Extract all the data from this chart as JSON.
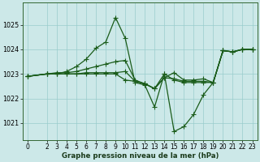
{
  "title": "Graphe pression niveau de la mer (hPa)",
  "bg_color": "#cce8e8",
  "line_color": "#1a5c1a",
  "grid_color": "#99cccc",
  "xlim": [
    -0.5,
    23.5
  ],
  "ylim": [
    1020.3,
    1025.9
  ],
  "yticks": [
    1021,
    1022,
    1023,
    1024,
    1025
  ],
  "xticks": [
    0,
    2,
    3,
    4,
    5,
    6,
    7,
    8,
    9,
    10,
    11,
    12,
    13,
    14,
    15,
    16,
    17,
    18,
    19,
    20,
    21,
    22,
    23
  ],
  "series1": [
    [
      0,
      1022.9
    ],
    [
      2,
      1023.0
    ],
    [
      3,
      1023.0
    ],
    [
      4,
      1023.1
    ],
    [
      5,
      1023.3
    ],
    [
      6,
      1023.6
    ],
    [
      7,
      1024.05
    ],
    [
      8,
      1024.3
    ],
    [
      9,
      1025.3
    ],
    [
      10,
      1024.45
    ],
    [
      11,
      1022.65
    ],
    [
      12,
      1022.55
    ],
    [
      13,
      1021.65
    ],
    [
      14,
      1023.0
    ],
    [
      15,
      1020.65
    ],
    [
      16,
      1020.85
    ],
    [
      17,
      1021.35
    ],
    [
      18,
      1022.15
    ],
    [
      19,
      1022.65
    ],
    [
      20,
      1023.95
    ],
    [
      21,
      1023.9
    ],
    [
      22,
      1024.0
    ],
    [
      23,
      1024.0
    ]
  ],
  "series2": [
    [
      0,
      1022.9
    ],
    [
      2,
      1023.0
    ],
    [
      3,
      1023.05
    ],
    [
      4,
      1023.05
    ],
    [
      5,
      1023.1
    ],
    [
      6,
      1023.2
    ],
    [
      7,
      1023.3
    ],
    [
      8,
      1023.4
    ],
    [
      9,
      1023.5
    ],
    [
      10,
      1023.55
    ],
    [
      11,
      1022.75
    ],
    [
      12,
      1022.6
    ],
    [
      13,
      1022.4
    ],
    [
      14,
      1022.85
    ],
    [
      15,
      1023.05
    ],
    [
      16,
      1022.75
    ],
    [
      17,
      1022.75
    ],
    [
      18,
      1022.8
    ],
    [
      19,
      1022.65
    ],
    [
      20,
      1023.95
    ],
    [
      21,
      1023.9
    ],
    [
      22,
      1024.0
    ],
    [
      23,
      1024.0
    ]
  ],
  "series3": [
    [
      0,
      1022.9
    ],
    [
      2,
      1023.0
    ],
    [
      3,
      1023.0
    ],
    [
      4,
      1023.0
    ],
    [
      5,
      1023.0
    ],
    [
      6,
      1023.05
    ],
    [
      7,
      1023.05
    ],
    [
      8,
      1023.05
    ],
    [
      9,
      1023.05
    ],
    [
      10,
      1023.1
    ],
    [
      11,
      1022.7
    ],
    [
      12,
      1022.6
    ],
    [
      13,
      1022.4
    ],
    [
      14,
      1022.85
    ],
    [
      15,
      1022.8
    ],
    [
      16,
      1022.7
    ],
    [
      17,
      1022.7
    ],
    [
      18,
      1022.7
    ],
    [
      19,
      1022.65
    ],
    [
      20,
      1023.95
    ],
    [
      21,
      1023.9
    ],
    [
      22,
      1024.0
    ],
    [
      23,
      1024.0
    ]
  ],
  "series4": [
    [
      0,
      1022.9
    ],
    [
      2,
      1023.0
    ],
    [
      3,
      1023.0
    ],
    [
      4,
      1023.0
    ],
    [
      5,
      1023.0
    ],
    [
      6,
      1023.0
    ],
    [
      7,
      1023.0
    ],
    [
      8,
      1023.0
    ],
    [
      9,
      1023.0
    ],
    [
      10,
      1022.75
    ],
    [
      11,
      1022.7
    ],
    [
      12,
      1022.6
    ],
    [
      13,
      1022.4
    ],
    [
      14,
      1023.0
    ],
    [
      15,
      1022.75
    ],
    [
      16,
      1022.65
    ],
    [
      17,
      1022.65
    ],
    [
      18,
      1022.65
    ],
    [
      19,
      1022.65
    ],
    [
      20,
      1023.95
    ],
    [
      21,
      1023.9
    ],
    [
      22,
      1024.0
    ],
    [
      23,
      1024.0
    ]
  ],
  "marker_size": 2.5,
  "line_width": 0.9,
  "tick_fontsize": 5.5,
  "xlabel_fontsize": 6.2
}
